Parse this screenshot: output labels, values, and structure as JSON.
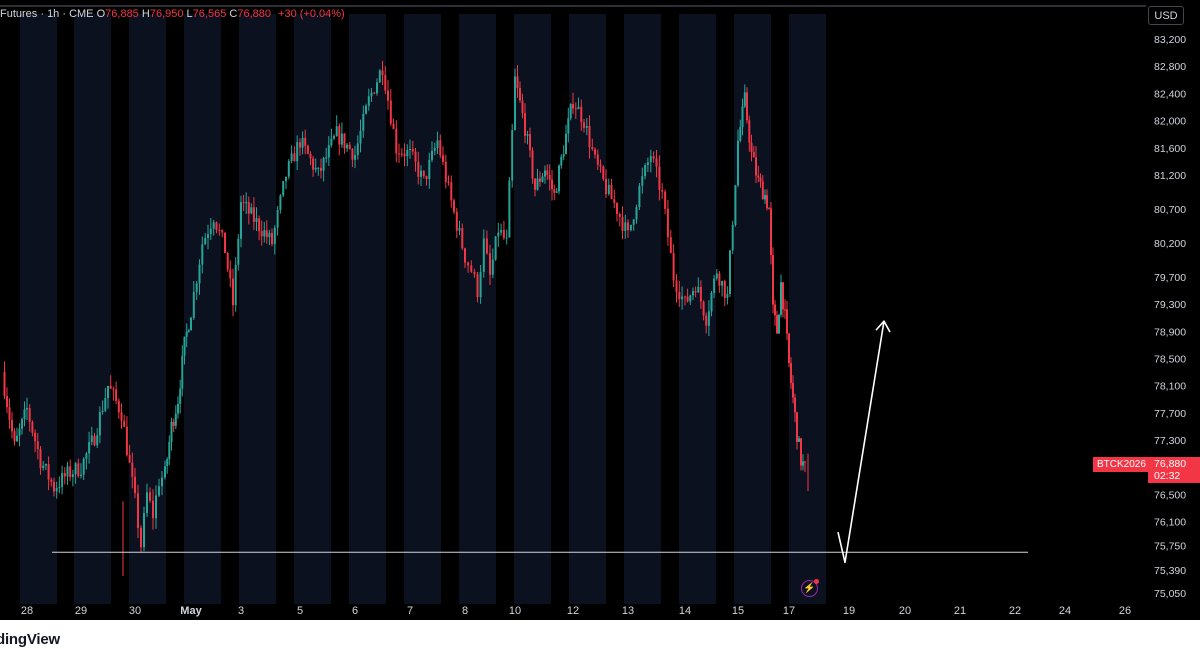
{
  "header": {
    "symbol_suffix": "Futures · 1h · CME",
    "o_label": "O",
    "o_value": "76,885",
    "h_label": "H",
    "h_value": "76,950",
    "l_label": "L",
    "l_value": "76,565",
    "c_label": "C",
    "c_value": "76,880",
    "change": "+30 (+0.04%)"
  },
  "currency_button": "USD",
  "last_price": {
    "symbol": "BTCK2026",
    "price": "76,880",
    "countdown": "02:32"
  },
  "logo_text": "dingView",
  "colors": {
    "background": "#000000",
    "session_band": "#0b111e",
    "up": "#26a69a",
    "down": "#f23645",
    "support_line": "#d1d4dc",
    "arrow": "#ffffff",
    "text": "#d1d4dc"
  },
  "chart_data": {
    "type": "candlestick",
    "interval": "1h",
    "y_unit": "USD",
    "ylim": [
      74900,
      83500
    ],
    "y_ticks": [
      "83,200",
      "82,800",
      "82,400",
      "82,000",
      "81,600",
      "81,200",
      "80,700",
      "80,200",
      "79,700",
      "79,300",
      "78,900",
      "78,500",
      "78,100",
      "77,700",
      "77,300",
      "76,900",
      "76,500",
      "76,100",
      "75,750",
      "75,390",
      "75,050"
    ],
    "x_ticks": [
      "28",
      "29",
      "30",
      "May",
      "3",
      "5",
      "6",
      "7",
      "8",
      "10",
      "12",
      "13",
      "14",
      "15",
      "17",
      "19",
      "20",
      "21",
      "22",
      "24",
      "26"
    ],
    "grid": false,
    "price_path": [
      {
        "date": "27",
        "price": 78300
      },
      {
        "date": "27",
        "price": 77200
      },
      {
        "date": "28",
        "price": 77750
      },
      {
        "date": "28",
        "price": 77000
      },
      {
        "date": "28.5",
        "price": 76600
      },
      {
        "date": "28.5",
        "price": 76800
      },
      {
        "date": "29",
        "price": 76900
      },
      {
        "date": "29",
        "price": 77350
      },
      {
        "date": "29",
        "price": 78100
      },
      {
        "date": "29",
        "price": 77700
      },
      {
        "date": "30",
        "price": 76400
      },
      {
        "date": "30",
        "price": 75750
      },
      {
        "date": "30",
        "price": 76500
      },
      {
        "date": "30",
        "price": 76200
      },
      {
        "date": "30",
        "price": 76700
      },
      {
        "date": "May 1",
        "price": 76800
      },
      {
        "date": "May 1",
        "price": 77500
      },
      {
        "date": "May 1",
        "price": 77900
      },
      {
        "date": "May 1",
        "price": 78700
      },
      {
        "date": "May 2",
        "price": 79200
      },
      {
        "date": "May 2",
        "price": 80200
      },
      {
        "date": "May 2",
        "price": 80600
      },
      {
        "date": "May 3",
        "price": 80100
      },
      {
        "date": "May 3",
        "price": 79300
      },
      {
        "date": "3",
        "price": 80800
      },
      {
        "date": "4",
        "price": 80200
      },
      {
        "date": "4",
        "price": 81200
      },
      {
        "date": "5",
        "price": 81700
      },
      {
        "date": "5",
        "price": 81200
      },
      {
        "date": "5",
        "price": 81800
      },
      {
        "date": "6",
        "price": 81500
      },
      {
        "date": "6",
        "price": 82300
      },
      {
        "date": "6",
        "price": 82800
      },
      {
        "date": "6",
        "price": 81600
      },
      {
        "date": "7",
        "price": 81500
      },
      {
        "date": "7",
        "price": 81100
      },
      {
        "date": "7",
        "price": 81700
      },
      {
        "date": "7",
        "price": 80800
      },
      {
        "date": "8",
        "price": 80000
      },
      {
        "date": "8",
        "price": 79800
      },
      {
        "date": "8",
        "price": 79500
      },
      {
        "date": "8",
        "price": 80200
      },
      {
        "date": "9",
        "price": 79700
      },
      {
        "date": "9",
        "price": 80400
      },
      {
        "date": "9",
        "price": 80200
      },
      {
        "date": "10",
        "price": 82600
      },
      {
        "date": "10",
        "price": 81900
      },
      {
        "date": "10",
        "price": 81000
      },
      {
        "date": "11",
        "price": 81300
      },
      {
        "date": "11",
        "price": 80900
      },
      {
        "date": "11",
        "price": 81600
      },
      {
        "date": "12",
        "price": 82300
      },
      {
        "date": "12",
        "price": 82000
      },
      {
        "date": "12",
        "price": 81400
      },
      {
        "date": "12",
        "price": 81000
      },
      {
        "date": "12",
        "price": 80700
      },
      {
        "date": "13",
        "price": 80300
      },
      {
        "date": "13",
        "price": 81000
      },
      {
        "date": "13",
        "price": 81500
      },
      {
        "date": "13",
        "price": 80900
      },
      {
        "date": "13",
        "price": 79700
      },
      {
        "date": "14",
        "price": 79300
      },
      {
        "date": "14",
        "price": 79600
      },
      {
        "date": "14",
        "price": 79100
      },
      {
        "date": "14",
        "price": 79800
      },
      {
        "date": "14",
        "price": 79400
      },
      {
        "date": "15",
        "price": 81700
      },
      {
        "date": "15",
        "price": 82300
      },
      {
        "date": "15",
        "price": 81500
      },
      {
        "date": "15",
        "price": 81100
      },
      {
        "date": "16",
        "price": 80900
      },
      {
        "date": "16",
        "price": 80700
      },
      {
        "date": "16",
        "price": 79200
      },
      {
        "date": "16",
        "price": 78900
      },
      {
        "date": "16",
        "price": 79600
      },
      {
        "date": "16",
        "price": 79100
      },
      {
        "date": "17",
        "price": 78400
      },
      {
        "date": "17",
        "price": 77900
      },
      {
        "date": "17",
        "price": 77400
      },
      {
        "date": "17",
        "price": 77000
      },
      {
        "date": "17",
        "price": 76880
      }
    ],
    "last_price": 76880,
    "support_level": 75650,
    "projection_arrow": [
      {
        "date": "18",
        "price": 75650
      },
      {
        "date": "18.5",
        "price": 75500
      },
      {
        "date": "19.5",
        "price": 79050
      }
    ]
  }
}
